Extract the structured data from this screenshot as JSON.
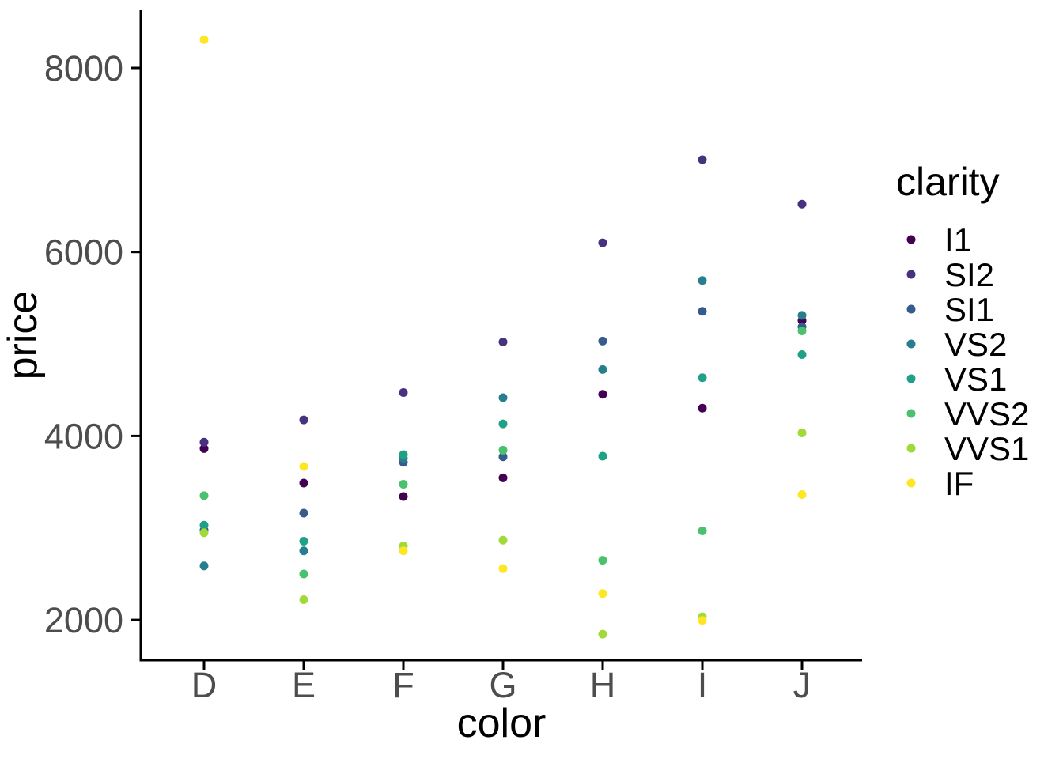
{
  "chart_data": {
    "type": "scatter",
    "title": "",
    "xlabel": "color",
    "ylabel": "price",
    "categories": [
      "D",
      "E",
      "F",
      "G",
      "H",
      "I",
      "J"
    ],
    "y_ticks": [
      2000,
      4000,
      6000,
      8000
    ],
    "ylim": [
      1520,
      8630
    ],
    "grid": false,
    "legend_position": "right",
    "legend_title": "clarity",
    "series": [
      {
        "name": "I1",
        "color": "#440154",
        "values": [
          3863,
          3488,
          3342,
          3545,
          4453,
          4302,
          5254
        ]
      },
      {
        "name": "SI2",
        "color": "#46327E",
        "values": [
          3932,
          4174,
          4472,
          5022,
          6100,
          7003,
          6520
        ]
      },
      {
        "name": "SI1",
        "color": "#365C8D",
        "values": [
          2976,
          3161,
          3714,
          3774,
          5032,
          5355,
          5186
        ]
      },
      {
        "name": "VS2",
        "color": "#277F8E",
        "values": [
          2587,
          2751,
          3757,
          4416,
          4722,
          5690,
          5311
        ]
      },
      {
        "name": "VS1",
        "color": "#1FA187",
        "values": [
          3030,
          2856,
          3797,
          4131,
          3780,
          4633,
          4884
        ]
      },
      {
        "name": "VVS2",
        "color": "#4AC16D",
        "values": [
          3351,
          2499,
          3475,
          3845,
          2649,
          2968,
          5142
        ]
      },
      {
        "name": "VVS1",
        "color": "#A0DA39",
        "values": [
          2948,
          2220,
          2804,
          2867,
          1845,
          2034,
          4034
        ]
      },
      {
        "name": "IF",
        "color": "#FDE725",
        "values": [
          8307,
          3668,
          2751,
          2558,
          2287,
          1994,
          3363
        ]
      }
    ],
    "style": {
      "axis_line_color": "#000000",
      "tick_color": "#000000",
      "tick_text_color": "#4d4d4d",
      "title_text_color": "#000000",
      "background": "#ffffff"
    }
  }
}
